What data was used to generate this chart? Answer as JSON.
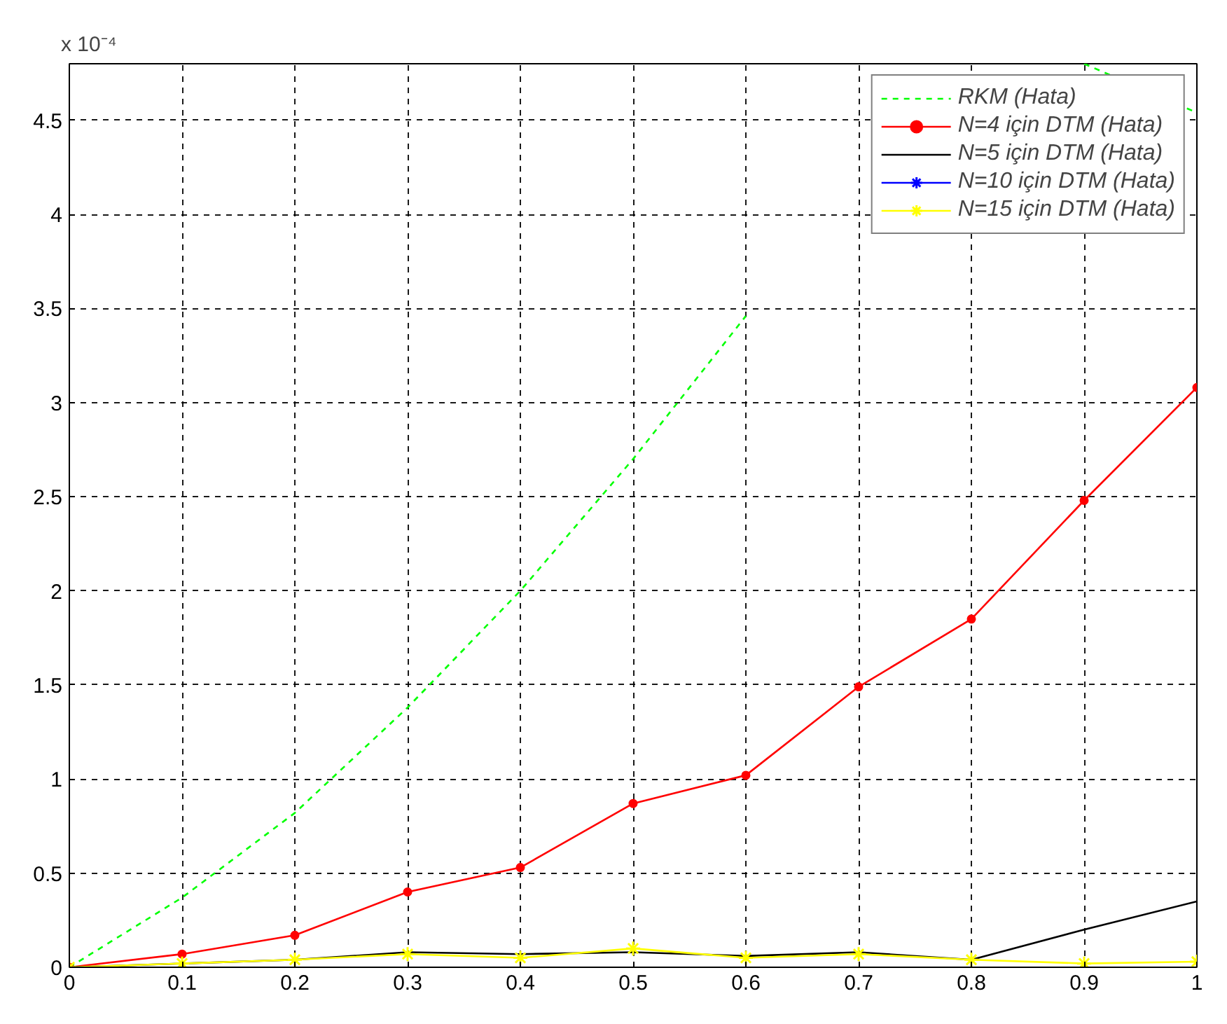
{
  "chart_data": {
    "type": "line",
    "x": [
      0,
      0.1,
      0.2,
      0.3,
      0.4,
      0.5,
      0.6,
      0.7,
      0.8,
      0.9,
      1
    ],
    "xlim": [
      0,
      1
    ],
    "xticks": [
      0,
      0.1,
      0.2,
      0.3,
      0.4,
      0.5,
      0.6,
      0.7,
      0.8,
      0.9,
      1
    ],
    "ylim": [
      0,
      4.8
    ],
    "yticks": [
      0,
      0.5,
      1,
      1.5,
      2,
      2.5,
      3,
      3.5,
      4,
      4.5
    ],
    "grid": true,
    "legend": "top right",
    "annotations": [
      "x 10⁻⁴"
    ],
    "series": [
      {
        "name": "RKM (Hata)",
        "color": "#00ff00",
        "line_style": "dashed",
        "marker": "none",
        "values": [
          0,
          0.37,
          0.82,
          1.38,
          2.0,
          2.7,
          3.46,
          null,
          null,
          4.8,
          4.54
        ]
      },
      {
        "name": "N=4 için DTM (Hata)",
        "color": "#ff0000",
        "line_style": "solid",
        "marker": "circle",
        "values": [
          0,
          0.07,
          0.17,
          0.4,
          0.53,
          0.87,
          1.02,
          1.49,
          1.85,
          2.48,
          3.08
        ]
      },
      {
        "name": "N=5 için DTM (Hata)",
        "color": "#000000",
        "line_style": "solid",
        "marker": "none",
        "values": [
          0,
          0.02,
          0.04,
          0.08,
          0.07,
          0.08,
          0.06,
          0.08,
          0.04,
          0.2,
          0.35
        ]
      },
      {
        "name": "N=10 için DTM (Hata)",
        "color": "#0000ff",
        "line_style": "solid",
        "marker": "cross",
        "values": [
          null,
          null,
          null,
          null,
          null,
          null,
          null,
          null,
          null,
          null,
          null
        ]
      },
      {
        "name": "N=15 için DTM (Hata)",
        "color": "#ffff00",
        "line_style": "solid",
        "marker": "cross",
        "values": [
          0,
          0.02,
          0.04,
          0.07,
          0.05,
          0.1,
          0.05,
          0.07,
          0.04,
          0.02,
          0.03
        ]
      }
    ]
  }
}
